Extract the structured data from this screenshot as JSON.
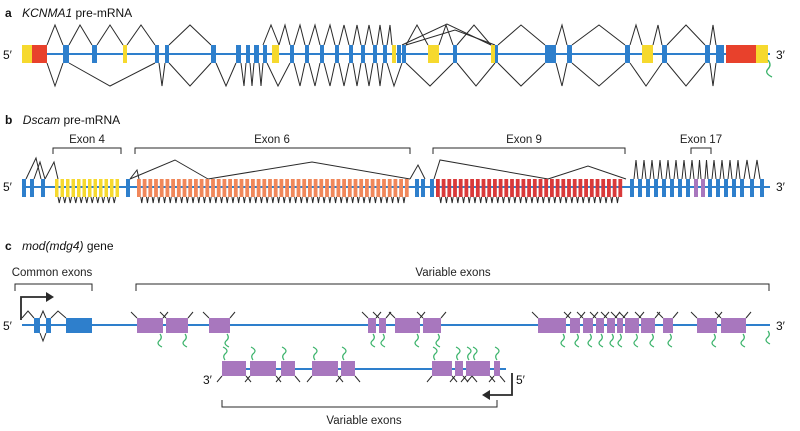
{
  "colors": {
    "backbone": "#2e7fcc",
    "constitutive": "#2e7fcc",
    "alt_yellow": "#f6d92e",
    "utr_red": "#e8412c",
    "exon_orange": "#f0875a",
    "exon_red": "#d9393a",
    "purple": "#a877be",
    "line": "#2a2a2a",
    "polya": "#3bb36b"
  },
  "panels": {
    "a": {
      "letter": "a",
      "gene": "KCNMA1",
      "suffix": " pre-mRNA",
      "left_end": "5′",
      "right_end": "3′"
    },
    "b": {
      "letter": "b",
      "gene": "Dscam",
      "suffix": " pre-mRNA",
      "left_end": "5′",
      "right_end": "3′",
      "groups": [
        "Exon 4",
        "Exon 6",
        "Exon 9",
        "Exon 17"
      ]
    },
    "c": {
      "letter": "c",
      "gene": "mod(mdg4)",
      "suffix": " gene",
      "left_end": "5′",
      "right_end": "3′",
      "common_label": "Common exons",
      "variable_label_top": "Variable exons",
      "lower_left_end": "3′",
      "lower_right_end": "5′",
      "variable_label_bottom": "Variable exons"
    }
  }
}
